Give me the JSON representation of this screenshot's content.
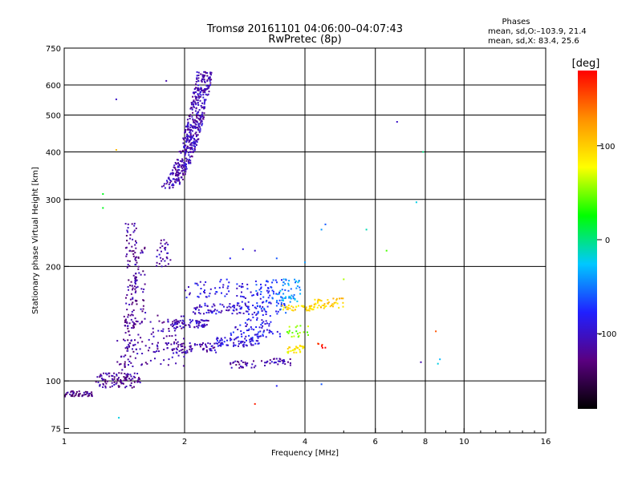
{
  "chart_data": {
    "type": "scatter",
    "title": "Tromsø 20161101 04:06:00–04:07:43",
    "subtitle": "RwPretec (8p)",
    "stats": {
      "heading": "Phases",
      "line_o": "mean, sd,O:–103.9, 21.4",
      "line_x": "mean, sd,X:  83.4, 25.6"
    },
    "xlabel": "Frequency [MHz]",
    "ylabel": "Stationary phase Virtual Height [km]",
    "x_scale": "log2",
    "y_scale": "log",
    "xlim": [
      1,
      16
    ],
    "ylim": [
      73,
      750
    ],
    "x_ticks": [
      {
        "value": 1,
        "label": "1"
      },
      {
        "value": 2,
        "label": "2"
      },
      {
        "value": 4,
        "label": "4"
      },
      {
        "value": 6,
        "label": "6"
      },
      {
        "value": 8,
        "label": "8"
      },
      {
        "value": 10,
        "label": "10"
      },
      {
        "value": 16,
        "label": "16"
      }
    ],
    "x_grid": [
      2,
      4,
      6,
      8,
      10
    ],
    "y_ticks": [
      {
        "value": 75,
        "label": "75"
      },
      {
        "value": 100,
        "label": "100"
      },
      {
        "value": 200,
        "label": "200"
      },
      {
        "value": 300,
        "label": "300"
      },
      {
        "value": 400,
        "label": "400"
      },
      {
        "value": 500,
        "label": "500"
      },
      {
        "value": 600,
        "label": "600"
      },
      {
        "value": 750,
        "label": "750"
      }
    ],
    "y_grid": [
      100,
      200,
      300,
      400,
      500,
      600
    ],
    "grid": true,
    "colorbar": {
      "label": "[deg]",
      "range": [
        -180,
        180
      ],
      "ticks": [
        {
          "value": 100,
          "label": "100"
        },
        {
          "value": 0,
          "label": "0"
        },
        {
          "value": -100,
          "label": "-100"
        }
      ],
      "colors": [
        "#000000",
        "#5a0080",
        "#2020ff",
        "#00c8ff",
        "#00ff00",
        "#ffff00",
        "#ff9000",
        "#ff0000"
      ]
    },
    "clusters": [
      {
        "x": [
          1.78,
          2.25
        ],
        "y": [
          320,
          650
        ],
        "phase": -108,
        "count": 480,
        "shape": "curve"
      },
      {
        "x": [
          1.0,
          1.19
        ],
        "y": [
          91,
          94
        ],
        "phase": -125,
        "count": 50
      },
      {
        "x": [
          1.2,
          1.55
        ],
        "y": [
          96,
          105
        ],
        "phase": -120,
        "count": 90
      },
      {
        "x": [
          1.35,
          1.5
        ],
        "y": [
          100,
          128
        ],
        "phase": -118,
        "count": 40
      },
      {
        "x": [
          1.42,
          1.52
        ],
        "y": [
          135,
          260
        ],
        "phase": -120,
        "count": 90
      },
      {
        "x": [
          1.5,
          1.6
        ],
        "y": [
          140,
          230
        ],
        "phase": -118,
        "count": 50
      },
      {
        "x": [
          1.7,
          1.85
        ],
        "y": [
          200,
          240
        ],
        "phase": -112,
        "count": 30
      },
      {
        "x": [
          1.4,
          2.0
        ],
        "y": [
          108,
          150
        ],
        "phase": -115,
        "count": 120
      },
      {
        "x": [
          1.8,
          2.4
        ],
        "y": [
          118,
          126
        ],
        "phase": -110,
        "count": 70
      },
      {
        "x": [
          1.85,
          2.3
        ],
        "y": [
          138,
          145
        ],
        "phase": -105,
        "count": 60
      },
      {
        "x": [
          2.1,
          2.9
        ],
        "y": [
          150,
          160
        ],
        "phase": -98,
        "count": 70
      },
      {
        "x": [
          2.0,
          2.6
        ],
        "y": [
          165,
          185
        ],
        "phase": -90,
        "count": 40
      },
      {
        "x": [
          2.4,
          3.1
        ],
        "y": [
          123,
          130
        ],
        "phase": -92,
        "count": 70
      },
      {
        "x": [
          2.6,
          3.5
        ],
        "y": [
          130,
          140
        ],
        "phase": -85,
        "count": 50
      },
      {
        "x": [
          2.7,
          3.3
        ],
        "y": [
          140,
          180
        ],
        "phase": -88,
        "count": 80
      },
      {
        "x": [
          3.0,
          3.6
        ],
        "y": [
          150,
          185
        ],
        "phase": -70,
        "count": 60
      },
      {
        "x": [
          3.4,
          3.9
        ],
        "y": [
          160,
          185
        ],
        "phase": -40,
        "count": 50
      },
      {
        "x": [
          3.2,
          3.7
        ],
        "y": [
          110,
          115
        ],
        "phase": -110,
        "count": 30
      },
      {
        "x": [
          2.6,
          3.2
        ],
        "y": [
          108,
          113
        ],
        "phase": -115,
        "count": 30
      },
      {
        "x": [
          3.5,
          4.2
        ],
        "y": [
          153,
          158
        ],
        "phase": 95,
        "count": 40
      },
      {
        "x": [
          4.2,
          5.0
        ],
        "y": [
          155,
          165
        ],
        "phase": 100,
        "count": 45
      },
      {
        "x": [
          3.6,
          4.0
        ],
        "y": [
          118,
          124
        ],
        "phase": 90,
        "count": 30
      },
      {
        "x": [
          3.6,
          4.1
        ],
        "y": [
          130,
          140
        ],
        "phase": 55,
        "count": 20
      },
      {
        "x": [
          4.3,
          4.5
        ],
        "y": [
          122,
          126
        ],
        "phase": 165,
        "count": 6
      }
    ],
    "scatter_points": [
      {
        "x": 1.35,
        "y": 550,
        "phase": -100
      },
      {
        "x": 1.8,
        "y": 615,
        "phase": -110
      },
      {
        "x": 6.8,
        "y": 480,
        "phase": -100
      },
      {
        "x": 7.9,
        "y": 400,
        "phase": 0
      },
      {
        "x": 7.6,
        "y": 295,
        "phase": -20
      },
      {
        "x": 1.25,
        "y": 310,
        "phase": 20
      },
      {
        "x": 1.25,
        "y": 285,
        "phase": 20
      },
      {
        "x": 4.5,
        "y": 258,
        "phase": -60
      },
      {
        "x": 4.4,
        "y": 250,
        "phase": -40
      },
      {
        "x": 5.7,
        "y": 250,
        "phase": -10
      },
      {
        "x": 6.4,
        "y": 220,
        "phase": 40
      },
      {
        "x": 8.5,
        "y": 135,
        "phase": 150
      },
      {
        "x": 8.7,
        "y": 114,
        "phase": -30
      },
      {
        "x": 8.6,
        "y": 111,
        "phase": -20
      },
      {
        "x": 7.8,
        "y": 112,
        "phase": -110
      },
      {
        "x": 3.0,
        "y": 87,
        "phase": 170
      },
      {
        "x": 3.4,
        "y": 97,
        "phase": -80
      },
      {
        "x": 1.37,
        "y": 80,
        "phase": -20
      },
      {
        "x": 4.4,
        "y": 98,
        "phase": -60
      },
      {
        "x": 4.0,
        "y": 205,
        "phase": -40
      },
      {
        "x": 2.8,
        "y": 222,
        "phase": -90
      },
      {
        "x": 3.0,
        "y": 220,
        "phase": -100
      },
      {
        "x": 2.6,
        "y": 210,
        "phase": -80
      },
      {
        "x": 1.35,
        "y": 405,
        "phase": 110
      },
      {
        "x": 5.0,
        "y": 185,
        "phase": 60
      },
      {
        "x": 3.4,
        "y": 210,
        "phase": -60
      }
    ]
  }
}
